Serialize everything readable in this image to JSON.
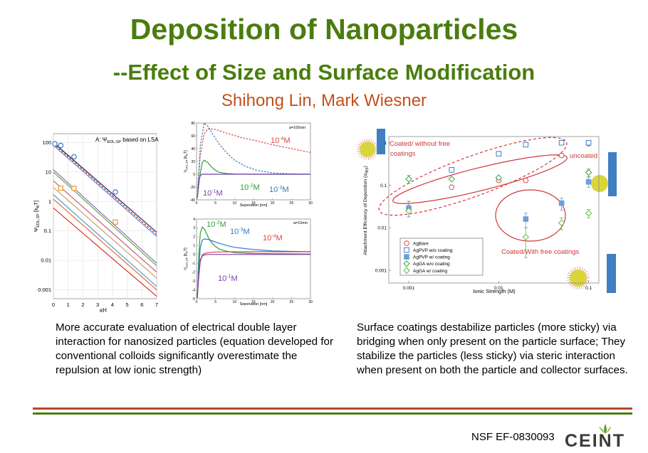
{
  "header": {
    "title": "Deposition of Nanoparticles",
    "subtitle": "--Effect of Size and Surface Modification",
    "authors": "Shihong Lin, Mark Wiesner"
  },
  "captions": {
    "left": "More accurate evaluation of electrical double layer interaction for nanosized particles (equation developed for conventional colloids significantly overestimate the repulsion at low ionic strength)",
    "right": "Surface coatings destabilize particles (more sticky) via bridging when only present on the particle surface; They stabilize the particles (less sticky) via steric interaction when present on both the particle and collector surfaces."
  },
  "footer": {
    "grant": "NSF EF-0830093",
    "logo_text": "CEINT"
  },
  "colors": {
    "title": "#4a7d0f",
    "authors": "#c4501c",
    "rule_red": "#b5482a",
    "rule_green": "#4a7d0f"
  },
  "chart_data": [
    {
      "id": "chart1",
      "type": "line",
      "title": "A: Ψ_EDL,SP based on LSA",
      "title_main": "A: Ψ",
      "title_sub": "EDL,SP",
      "title_rest": " based on LSA",
      "xlabel": "κH",
      "ylabel": "Ψ_EDL,SP [k_BT]",
      "ylabel_main": "Ψ",
      "ylabel_sub": "EDL,SP",
      "ylabel_rest": " [k",
      "ylabel_sub2": "B",
      "ylabel_end": "T]",
      "xlim": [
        0,
        7
      ],
      "ylim_log": [
        0.0005,
        200
      ],
      "yscale": "log",
      "xticks": [
        0,
        1,
        2,
        3,
        4,
        5,
        6,
        7
      ],
      "yticks": [
        100,
        10,
        1,
        0.1,
        0.01,
        0.001
      ],
      "ytick_labels": [
        "100",
        "10",
        "1",
        "0.1",
        "0.01",
        "0.001"
      ],
      "series": [
        {
          "color": "#1c2a5a",
          "dash": false,
          "x": [
            0,
            7
          ],
          "y": [
            100,
            0.09
          ]
        },
        {
          "color": "#d02020",
          "dash": true,
          "x": [
            0,
            7
          ],
          "y": [
            90,
            0.075
          ]
        },
        {
          "color": "#5a8fd0",
          "dash": false,
          "x": [
            0,
            7
          ],
          "y": [
            80,
            0.065
          ]
        },
        {
          "color": "#8a6fc0",
          "dash": false,
          "x": [
            0,
            7
          ],
          "y": [
            12,
            0.008
          ]
        },
        {
          "color": "#6aa83e",
          "dash": false,
          "x": [
            0,
            7
          ],
          "y": [
            10,
            0.0065
          ]
        },
        {
          "color": "#c06080",
          "dash": false,
          "x": [
            0,
            7
          ],
          "y": [
            5,
            0.004
          ]
        },
        {
          "color": "#d0a060",
          "dash": false,
          "x": [
            0,
            7
          ],
          "y": [
            3,
            0.0025
          ]
        },
        {
          "color": "#e06a3a",
          "dash": false,
          "x": [
            0,
            7
          ],
          "y": [
            1.2,
            0.001
          ]
        },
        {
          "color": "#50a0d0",
          "dash": false,
          "x": [
            0,
            7
          ],
          "y": [
            1.7,
            0.0013
          ]
        },
        {
          "color": "#d83030",
          "dash": false,
          "x": [
            0,
            7
          ],
          "y": [
            0.6,
            0.0006
          ]
        }
      ],
      "markers_circle": [
        {
          "x": 0.1,
          "y": 90
        },
        {
          "x": 0.5,
          "y": 80
        },
        {
          "x": 1.4,
          "y": 33
        },
        {
          "x": 4.2,
          "y": 2.1
        }
      ],
      "markers_square": [
        {
          "x": 0.5,
          "y": 2.8
        },
        {
          "x": 1.4,
          "y": 2.8
        },
        {
          "x": 4.2,
          "y": 0.2
        }
      ]
    },
    {
      "id": "chart2",
      "type": "line",
      "corner_label": "a=100nm",
      "xlabel": "Seperation [nm]",
      "ylabel": "V_EDL,SP [k_BT]",
      "ylabel_main": "V",
      "ylabel_sub": "EDL,SP",
      "ylabel_rest": " [k",
      "ylabel_sub2": "B",
      "ylabel_end": "T]",
      "xlim": [
        0,
        30
      ],
      "ylim": [
        -40,
        80
      ],
      "xticks": [
        0,
        5,
        10,
        15,
        20,
        25,
        30
      ],
      "yticks": [
        -40,
        -20,
        0,
        20,
        40,
        60,
        80
      ],
      "series": [
        {
          "name": "10⁻⁴M",
          "label_text": "10",
          "label_exp": "-4",
          "label_unit": "M",
          "color": "#e04545",
          "dash": true,
          "x": [
            0.3,
            1,
            2,
            3,
            5,
            8,
            12,
            16,
            20,
            25,
            30
          ],
          "y": [
            -22,
            30,
            63,
            71,
            70,
            64,
            57,
            52,
            46,
            40,
            34
          ]
        },
        {
          "name": "10⁻³M",
          "label_text": "10",
          "label_exp": "-3",
          "label_unit": "M",
          "color": "#2f7ec6",
          "dash": true,
          "x": [
            0.3,
            1,
            2,
            3,
            4,
            6,
            8,
            10,
            13,
            16,
            20,
            25,
            30
          ],
          "y": [
            -28,
            45,
            80,
            75,
            65,
            47,
            33,
            22,
            12,
            6,
            2,
            0.5,
            0
          ]
        },
        {
          "name": "10⁻²M",
          "label_text": "10",
          "label_exp": "-2",
          "label_unit": "M",
          "color": "#2f9e3a",
          "dash": false,
          "x": [
            0.2,
            0.8,
            1.5,
            2,
            3,
            4,
            5,
            6,
            8,
            10,
            15,
            30
          ],
          "y": [
            -38,
            -5,
            18,
            22,
            18,
            11,
            6,
            3,
            1,
            0.3,
            0,
            0
          ]
        },
        {
          "name": "10⁻¹M",
          "label_text": "10",
          "label_exp": "-1",
          "label_unit": "M",
          "color": "#7a3fb0",
          "dash": false,
          "x": [
            0.2,
            0.6,
            1,
            1.5,
            2,
            2.5,
            3,
            4,
            6,
            30
          ],
          "y": [
            -36,
            -10,
            -2,
            0,
            0,
            0,
            0,
            0,
            0,
            0
          ]
        }
      ],
      "reference_line_y": 0
    },
    {
      "id": "chart3",
      "type": "line",
      "corner_label": "a=10nm",
      "xlabel": "Seperation [nm]",
      "ylabel": "V_EDL,SP [k_BT]",
      "ylabel_main": "V",
      "ylabel_sub": "EDL,SP",
      "ylabel_rest": " [k",
      "ylabel_sub2": "B",
      "ylabel_end": "T]",
      "xlim": [
        0,
        30
      ],
      "ylim": [
        -5,
        4
      ],
      "xticks": [
        0,
        5,
        10,
        15,
        20,
        25,
        30
      ],
      "yticks": [
        -5,
        -4,
        -3,
        -2,
        -1,
        0,
        1,
        2,
        3,
        4
      ],
      "series": [
        {
          "name": "10⁻²M",
          "label_text": "10",
          "label_exp": "-2",
          "label_unit": "M",
          "color": "#2f9e3a",
          "dash": false,
          "x": [
            0.2,
            0.6,
            1,
            1.5,
            2,
            2.5,
            3,
            4,
            5,
            6,
            8,
            10,
            15,
            30
          ],
          "y": [
            -4.9,
            0,
            2.4,
            3.1,
            2.9,
            2.5,
            2.0,
            1.3,
            0.9,
            0.6,
            0.35,
            0.2,
            0.1,
            0.05
          ]
        },
        {
          "name": "10⁻³M",
          "label_text": "10",
          "label_exp": "-3",
          "label_unit": "M",
          "color": "#2f7ec6",
          "dash": false,
          "x": [
            0.2,
            0.6,
            1,
            1.5,
            2,
            3,
            4,
            6,
            8,
            10,
            15,
            20,
            30
          ],
          "y": [
            -4.9,
            -1.5,
            0.8,
            1.6,
            1.75,
            1.7,
            1.55,
            1.25,
            1.0,
            0.8,
            0.55,
            0.4,
            0.3
          ]
        },
        {
          "name": "10⁻⁴M",
          "label_text": "10",
          "label_exp": "-4",
          "label_unit": "M",
          "color": "#e04545",
          "dash": false,
          "x": [
            0.2,
            0.6,
            1,
            1.5,
            2,
            3,
            4,
            6,
            10,
            15,
            20,
            30
          ],
          "y": [
            -4.9,
            -2.5,
            -0.8,
            -0.1,
            0.1,
            0.2,
            0.25,
            0.28,
            0.3,
            0.3,
            0.3,
            0.3
          ]
        },
        {
          "name": "10⁻¹M",
          "label_text": "10",
          "label_exp": "-1",
          "label_unit": "M",
          "color": "#7a3fb0",
          "dash": false,
          "x": [
            0.2,
            0.5,
            1,
            1.5,
            2,
            3,
            4,
            6,
            10,
            30
          ],
          "y": [
            -4.9,
            -2.5,
            -0.6,
            -0.2,
            -0.05,
            0,
            0,
            0,
            0,
            0
          ]
        }
      ]
    },
    {
      "id": "chart4",
      "type": "scatter",
      "xlabel": "Ionic Strength (M)",
      "ylabel": "Attachment Efficiency of Deposition (α_dep)",
      "ylabel_main": "Attachment Efficiency of Deposition (α",
      "ylabel_sub": "dep",
      "ylabel_end": ")",
      "xscale": "log",
      "yscale": "log",
      "xlim": [
        0.0006,
        0.13
      ],
      "ylim": [
        0.0005,
        1.4
      ],
      "xticks": [
        0.001,
        0.01,
        0.1
      ],
      "xtick_labels": [
        "0.001",
        "0.01",
        "0.1"
      ],
      "yticks": [
        1,
        0.1,
        0.01,
        0.001
      ],
      "ytick_labels": [
        "1",
        "0.1",
        "0.01",
        "0.001"
      ],
      "legend_position": "bottom-left",
      "series": [
        {
          "name": "AgBare",
          "marker": "circle",
          "fill": "none",
          "color": "#d24b4b",
          "points": [
            {
              "x": 0.001,
              "y": 0.03,
              "err": 0.012
            },
            {
              "x": 0.003,
              "y": 0.09
            },
            {
              "x": 0.01,
              "y": 0.13
            },
            {
              "x": 0.02,
              "y": 0.13
            },
            {
              "x": 0.05,
              "y": 0.5
            },
            {
              "x": 0.1,
              "y": 0.95
            }
          ]
        },
        {
          "name": "AgPVP w/o coating",
          "marker": "square",
          "fill": "none",
          "color": "#3a7fc8",
          "points": [
            {
              "x": 0.003,
              "y": 0.23
            },
            {
              "x": 0.01,
              "y": 0.55
            },
            {
              "x": 0.02,
              "y": 0.9
            },
            {
              "x": 0.05,
              "y": 1.0
            },
            {
              "x": 0.1,
              "y": 1.0
            }
          ]
        },
        {
          "name": "AgPVP w/ coating",
          "marker": "square",
          "fill": "solid",
          "color": "#6aa0dc",
          "points": [
            {
              "x": 0.001,
              "y": 0.028,
              "err": 0.01
            },
            {
              "x": 0.02,
              "y": 0.016,
              "err": 0.006
            },
            {
              "x": 0.05,
              "y": 0.038,
              "err": 0.012
            },
            {
              "x": 0.1,
              "y": 0.12,
              "err": 0.03
            }
          ]
        },
        {
          "name": "AgGA w/o coating",
          "marker": "diamond",
          "fill": "none",
          "color": "#3aa043",
          "points": [
            {
              "x": 0.001,
              "y": 0.14,
              "err": 0.03
            },
            {
              "x": 0.003,
              "y": 0.14
            },
            {
              "x": 0.01,
              "y": 0.15
            },
            {
              "x": 0.1,
              "y": 0.2,
              "err": 0.04
            }
          ]
        },
        {
          "name": "AgGA w/ coating",
          "marker": "diamond",
          "fill": "none",
          "color": "#5cc040",
          "points": [
            {
              "x": 0.001,
              "y": 0.025
            },
            {
              "x": 0.02,
              "y": 0.006,
              "err": 0.004
            },
            {
              "x": 0.05,
              "y": 0.013,
              "err": 0.004
            },
            {
              "x": 0.1,
              "y": 0.022,
              "err": 0.005
            }
          ]
        }
      ],
      "annotations": [
        {
          "text": "Coated/ without free",
          "color": "#d0363a"
        },
        {
          "text": "coatings",
          "color": "#d0363a"
        },
        {
          "text": "uncoated",
          "color": "#d0363a"
        },
        {
          "text": "Coated/With free coatings",
          "color": "#d0363a"
        }
      ]
    }
  ]
}
